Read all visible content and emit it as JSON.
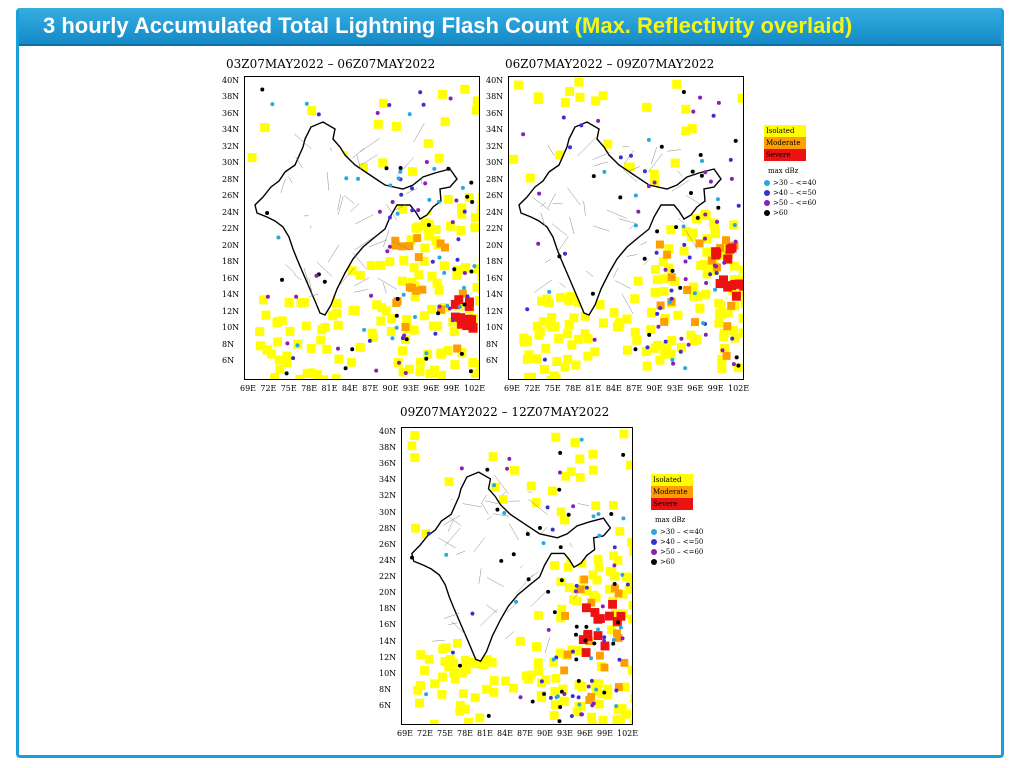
{
  "header": {
    "title_main": "3 hourly Accumulated Total Lightning Flash Count",
    "title_sub": "(Max. Reflectivity overlaid)"
  },
  "colors": {
    "header_bg": "#1a96d4",
    "title_sub_color": "#f5f51a",
    "isolated": "#ffff00",
    "moderate": "#ff9e00",
    "severe": "#ee1111",
    "dbz_30_40": "#29a7e1",
    "dbz_40_50": "#3a2fd0",
    "dbz_50_60": "#8a1fb0",
    "dbz_gt60": "#000000"
  },
  "panels": [
    {
      "title": "03Z07MAY2022  –  06Z07MAY2022"
    },
    {
      "title": "06Z07MAY2022  –  09Z07MAY2022"
    },
    {
      "title": "09Z07MAY2022  –  12Z07MAY2022"
    }
  ],
  "axes": {
    "lat_labels": [
      "40N",
      "38N",
      "36N",
      "34N",
      "32N",
      "30N",
      "28N",
      "26N",
      "24N",
      "22N",
      "20N",
      "18N",
      "16N",
      "14N",
      "12N",
      "10N",
      "8N",
      "6N"
    ],
    "lon_labels": [
      "69E",
      "72E",
      "75E",
      "78E",
      "81E",
      "84E",
      "87E",
      "90E",
      "93E",
      "96E",
      "99E",
      "102E"
    ]
  },
  "legend": {
    "categories": [
      "Isolated",
      "Moderate",
      "Severe"
    ],
    "max_dbz_label": "max dBz",
    "dbz_classes": [
      ">30  –  <=40",
      ">40  –  <=50",
      ">50  –  <=60",
      ">60"
    ]
  },
  "map_icon": "india-lightning-map"
}
